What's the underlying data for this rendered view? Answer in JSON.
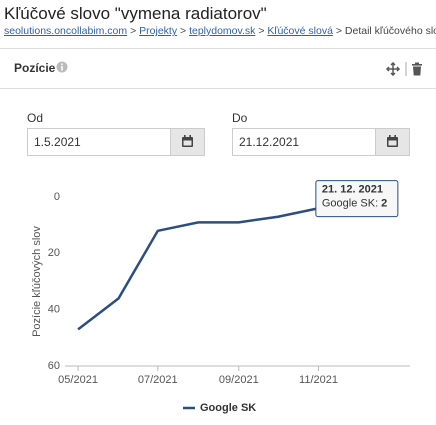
{
  "header": {
    "title": "Kľúčové slovo \"vymena radiatorov\"",
    "breadcrumb": {
      "links": [
        "seolutions.oncollabim.com",
        "Projekty",
        "teplydomov.sk",
        "Kľúčové slová"
      ],
      "separator": ">",
      "current": "Detail kľúčového slova"
    }
  },
  "panel": {
    "title": "Pozície"
  },
  "filters": {
    "from_label": "Od",
    "from_value": "1.5.2021",
    "to_label": "Do",
    "to_value": "21.12.2021"
  },
  "chart_data": {
    "type": "line",
    "y_label": "Pozície kľúčových slov",
    "x": [
      "2021-05-01",
      "2021-06-01",
      "2021-07-01",
      "2021-08-01",
      "2021-09-01",
      "2021-10-01",
      "2021-11-01",
      "2021-12-21"
    ],
    "series": [
      {
        "name": "Google SK",
        "color": "#2b4e7e",
        "values": [
          47,
          36,
          12,
          9,
          9,
          7,
          4,
          2
        ]
      }
    ],
    "xlim": [
      "2021-04-21",
      "2022-01-10"
    ],
    "xticks": [
      {
        "value": "2021-05-01",
        "label": "05/2021"
      },
      {
        "value": "2021-07-01",
        "label": "07/2021"
      },
      {
        "value": "2021-09-01",
        "label": "09/2021"
      },
      {
        "value": "2021-11-01",
        "label": "11/2021"
      }
    ],
    "ylim": [
      60,
      0
    ],
    "yticks": [
      0,
      20,
      40,
      60
    ],
    "grid": false,
    "tooltip": {
      "title": "21. 12. 2021",
      "separator": ":"
    }
  }
}
